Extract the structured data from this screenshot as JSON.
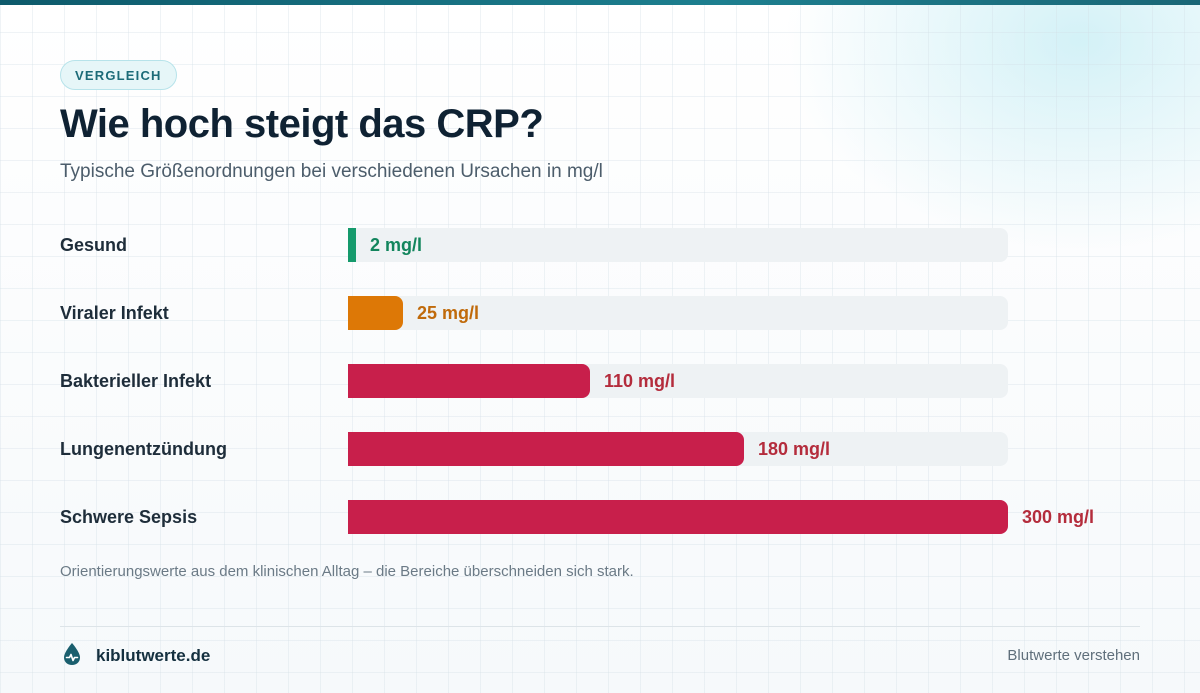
{
  "badge": "VERGLEICH",
  "chart_data": {
    "type": "bar",
    "orientation": "horizontal",
    "title": "Wie hoch steigt das CRP?",
    "subtitle": "Typische Größenordnungen bei verschiedenen Ursachen in mg/l",
    "unit": "mg/l",
    "xlim": [
      0,
      300
    ],
    "grid": false,
    "categories": [
      "Gesund",
      "Viraler Infekt",
      "Bakterieller Infekt",
      "Lungenentzündung",
      "Schwere Sepsis"
    ],
    "values": [
      2,
      25,
      110,
      180,
      300
    ],
    "value_labels": [
      "2 mg/l",
      "25 mg/l",
      "110 mg/l",
      "180 mg/l",
      "300 mg/l"
    ],
    "bar_colors": [
      "#159a6c",
      "#dd7806",
      "#c81f4b",
      "#c81f4b",
      "#c81f4b"
    ],
    "label_colors": [
      "#12855d",
      "#c06a0a",
      "#b42c3c",
      "#b42c3c",
      "#b42c3c"
    ],
    "footnote": "Orientierungswerte aus dem klinischen Alltag – die Bereiche überschneiden sich stark."
  },
  "footer": {
    "brand": "kiblutwerte.de",
    "tagline": "Blutwerte verstehen",
    "logo_icon": "blood-drop-icon",
    "logo_color": "#1a5f6e"
  }
}
